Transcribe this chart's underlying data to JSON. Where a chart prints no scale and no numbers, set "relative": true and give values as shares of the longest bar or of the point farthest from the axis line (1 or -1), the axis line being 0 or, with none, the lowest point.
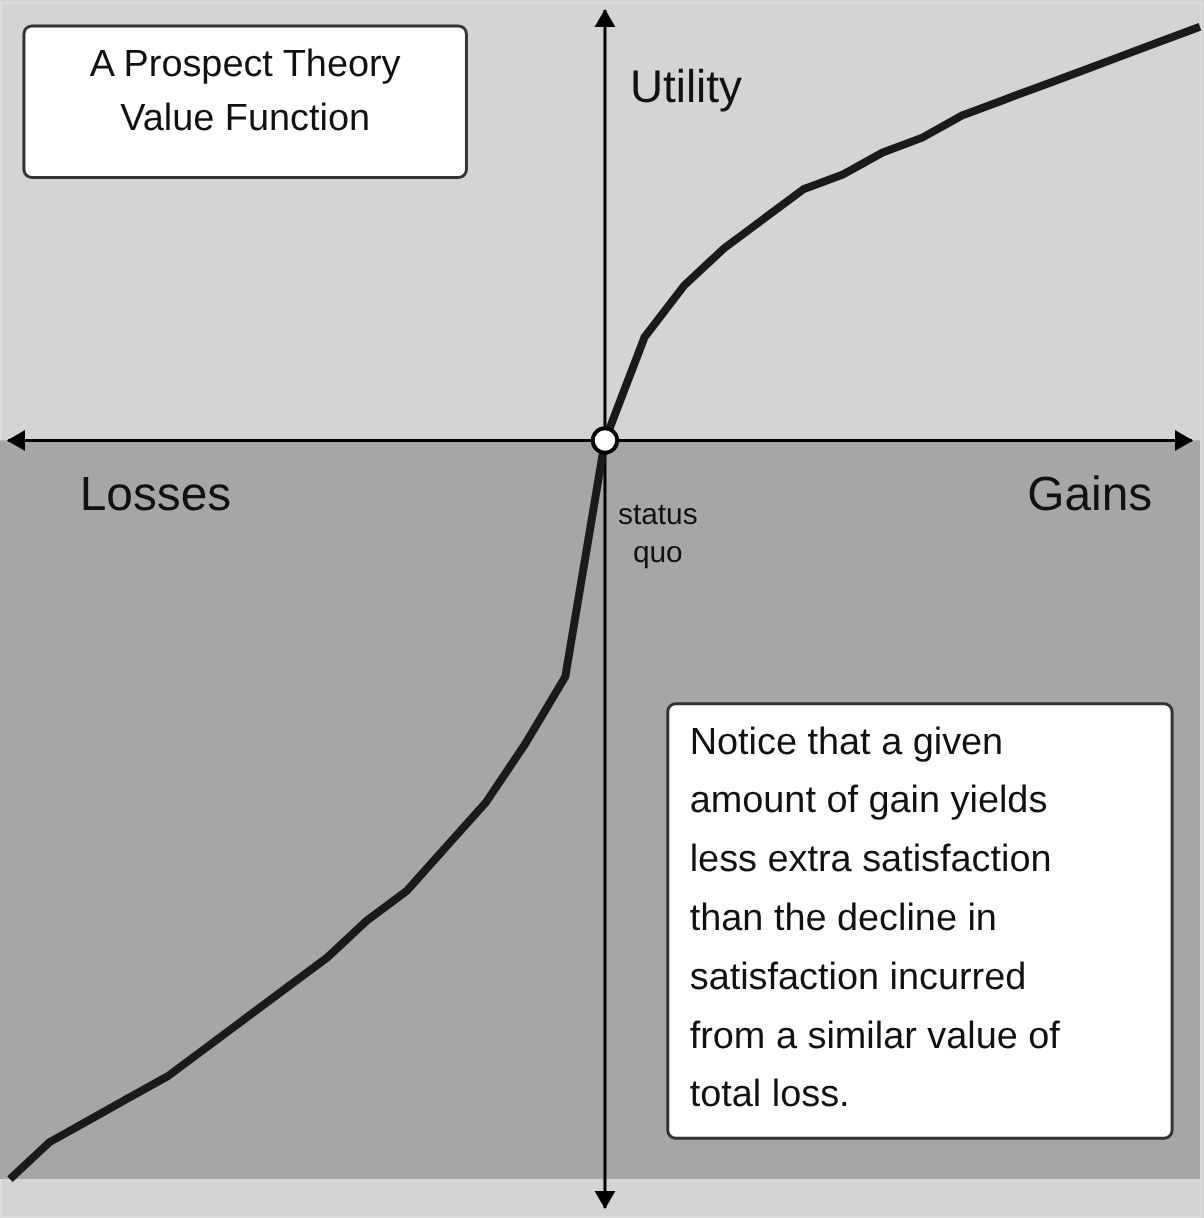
{
  "chart_data": {
    "type": "line",
    "relative": true,
    "title": "A Prospect Theory Value Function",
    "ylabel": "Utility",
    "categories": [
      null,
      null,
      null,
      null,
      null,
      null,
      null,
      null,
      null,
      null,
      null,
      null,
      null,
      null,
      null,
      null,
      null,
      null,
      null,
      null,
      null,
      null,
      null,
      null,
      null,
      null,
      null,
      null,
      null,
      null,
      null
    ],
    "series": [
      {
        "color": "#1a1a1a",
        "values": [
          -1,
          -0.95,
          -0.92,
          -0.89,
          -0.86,
          -0.82,
          -0.78,
          -0.74,
          -0.7,
          -0.65,
          -0.61,
          -0.55,
          -0.49,
          -0.41,
          -0.32,
          0,
          0.14,
          0.21,
          0.26,
          0.3,
          0.34,
          0.36,
          0.39,
          0.41,
          0.44,
          0.46,
          0.48,
          0.5,
          0.52,
          0.54,
          0.56
        ]
      }
    ],
    "bands": [
      {
        "axis": "y",
        "from": -1,
        "to": 0,
        "color": "#a6a6a6"
      }
    ],
    "annotations": [
      "Losses",
      "Gains",
      "status quo",
      "Notice that a given amount of gain yields less extra satisfaction than the decline in satisfaction incurred from a similar value of total loss."
    ],
    "marker": "none",
    "line_style": "solid"
  }
}
